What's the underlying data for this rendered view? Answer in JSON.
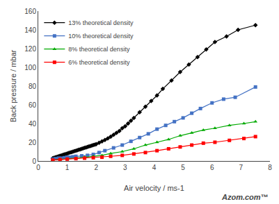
{
  "chart_data": {
    "type": "line",
    "x_label": "Air velocity / ms-1",
    "y_label": "Back pressure / mbar",
    "annotations": [
      "Azom.com™"
    ],
    "series": [
      {
        "name": "13% theoretical density",
        "color": "#000000",
        "marker": "diamond",
        "x": [
          0.5,
          0.55,
          0.6,
          0.65,
          0.7,
          0.75,
          0.8,
          0.85,
          0.9,
          0.95,
          1.0,
          1.05,
          1.1,
          1.15,
          1.2,
          1.25,
          1.3,
          1.35,
          1.4,
          1.45,
          1.5,
          1.55,
          1.6,
          1.65,
          1.7,
          1.75,
          1.8,
          1.85,
          1.9,
          1.95,
          2.0,
          2.1,
          2.2,
          2.3,
          2.4,
          2.5,
          2.6,
          2.7,
          2.8,
          2.9,
          3.0,
          3.1,
          3.2,
          3.3,
          3.5,
          3.7,
          3.9,
          4.1,
          4.3,
          4.6,
          4.9,
          5.2,
          5.5,
          5.8,
          6.1,
          6.5,
          6.9,
          7.5
        ],
        "values": [
          3,
          3.5,
          4,
          4.5,
          5,
          5.5,
          6,
          6.5,
          7,
          7.5,
          8,
          8.5,
          9,
          9.5,
          10,
          10.5,
          11,
          11.5,
          12,
          12.5,
          13,
          13.5,
          14,
          14.5,
          15,
          15.5,
          16,
          16.5,
          17,
          17.5,
          18,
          19.5,
          21,
          22.5,
          24,
          26,
          28,
          30,
          32,
          35,
          37,
          40,
          43,
          46,
          52,
          58,
          64,
          70,
          77,
          86,
          95,
          103,
          111,
          119,
          127,
          133,
          140,
          145
        ]
      },
      {
        "name": "10% theoretical density",
        "color": "#4472C4",
        "marker": "square",
        "x": [
          0.5,
          0.6,
          0.7,
          0.8,
          0.9,
          1.0,
          1.1,
          1.2,
          1.3,
          1.5,
          1.7,
          1.9,
          2.1,
          2.3,
          2.6,
          2.9,
          3.2,
          3.5,
          3.8,
          4.1,
          4.4,
          4.7,
          5.0,
          5.3,
          5.6,
          6.0,
          6.4,
          6.8,
          7.5
        ],
        "values": [
          2,
          2.5,
          3,
          3,
          3.5,
          4,
          4,
          4.5,
          5,
          5.5,
          6,
          7,
          9,
          11,
          14,
          17,
          21,
          25,
          29,
          34,
          38,
          42,
          46,
          51,
          56,
          62,
          66,
          68,
          79
        ]
      },
      {
        "name": "8% theoretical density",
        "color": "#00AA00",
        "marker": "triangle-up",
        "x": [
          0.5,
          0.75,
          1.0,
          1.3,
          1.6,
          1.9,
          2.2,
          2.5,
          2.9,
          3.3,
          3.7,
          4.1,
          4.5,
          4.9,
          5.3,
          5.7,
          6.1,
          6.6,
          7.1,
          7.5
        ],
        "values": [
          1,
          1.5,
          2,
          3,
          4,
          5,
          6,
          8,
          10,
          13,
          17,
          20,
          23,
          27,
          30,
          33,
          35,
          38,
          40,
          42
        ]
      },
      {
        "name": "6% theoretical density",
        "color": "#FF0000",
        "marker": "square",
        "x": [
          0.5,
          0.75,
          1.0,
          1.3,
          1.6,
          1.9,
          2.2,
          2.5,
          2.9,
          3.3,
          3.7,
          4.1,
          4.5,
          4.9,
          5.3,
          5.7,
          6.1,
          6.6,
          7.1,
          7.5
        ],
        "values": [
          1,
          1.5,
          2,
          2.5,
          3,
          3.5,
          4,
          5,
          6,
          7.5,
          9,
          11,
          13,
          15,
          17,
          19,
          20,
          22,
          24,
          26
        ]
      }
    ],
    "xlim": [
      0,
      8
    ],
    "ylim": [
      0,
      160
    ],
    "xticks": [
      0,
      1,
      2,
      3,
      4,
      5,
      6,
      7,
      8
    ],
    "yticks": [
      0,
      20,
      40,
      60,
      80,
      100,
      120,
      140,
      160
    ],
    "grid": false,
    "legend": "upper left"
  }
}
